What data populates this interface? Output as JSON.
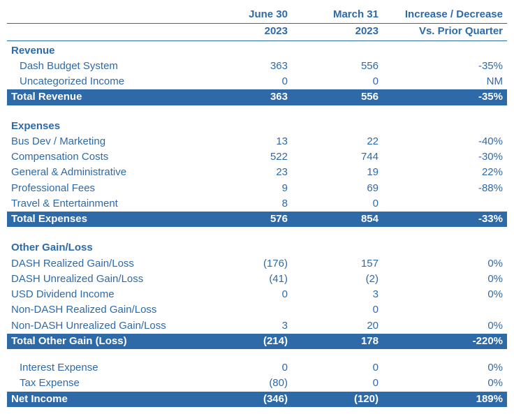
{
  "colors": {
    "brand": "#2f6aa8",
    "white": "#ffffff"
  },
  "header": {
    "col1_l1": "June 30",
    "col1_l2": "2023",
    "col2_l1": "March 31",
    "col2_l2": "2023",
    "col3_l1": "Increase / Decrease",
    "col3_l2": "Vs. Prior Quarter"
  },
  "revenue": {
    "title": "Revenue",
    "rows": [
      {
        "label": "Dash Budget System",
        "v1": "363",
        "v2": "556",
        "v3": "-35%"
      },
      {
        "label": "Uncategorized Income",
        "v1": "0",
        "v2": "0",
        "v3": "NM"
      }
    ],
    "total": {
      "label": "Total Revenue",
      "v1": "363",
      "v2": "556",
      "v3": "-35%"
    }
  },
  "expenses": {
    "title": "Expenses",
    "rows": [
      {
        "label": "Bus Dev / Marketing",
        "v1": "13",
        "v2": "22",
        "v3": "-40%"
      },
      {
        "label": "Compensation Costs",
        "v1": "522",
        "v2": "744",
        "v3": "-30%"
      },
      {
        "label": "General & Administrative",
        "v1": "23",
        "v2": "19",
        "v3": "22%"
      },
      {
        "label": "Professional Fees",
        "v1": "9",
        "v2": "69",
        "v3": "-88%"
      },
      {
        "label": "Travel & Entertainment",
        "v1": "8",
        "v2": "0",
        "v3": ""
      }
    ],
    "total": {
      "label": "Total Expenses",
      "v1": "576",
      "v2": "854",
      "v3": "-33%"
    }
  },
  "other": {
    "title": "Other Gain/Loss",
    "rows": [
      {
        "label": "DASH Realized Gain/Loss",
        "v1": "(176)",
        "v2": "157",
        "v3": "0%"
      },
      {
        "label": "DASH Unrealized Gain/Loss",
        "v1": "(41)",
        "v2": "(2)",
        "v3": "0%"
      },
      {
        "label": "USD Dividend Income",
        "v1": "0",
        "v2": "3",
        "v3": "0%"
      },
      {
        "label": "Non-DASH Realized Gain/Loss",
        "v1": "",
        "v2": "0",
        "v3": ""
      },
      {
        "label": "Non-DASH Unrealized Gain/Loss",
        "v1": "3",
        "v2": "20",
        "v3": "0%"
      }
    ],
    "total": {
      "label": "Total Other Gain (Loss)",
      "v1": "(214)",
      "v2": "178",
      "v3": "-220%"
    }
  },
  "footer": {
    "rows": [
      {
        "label": "Interest Expense",
        "v1": "0",
        "v2": "0",
        "v3": "0%"
      },
      {
        "label": "Tax Expense",
        "v1": "(80)",
        "v2": "0",
        "v3": "0%"
      }
    ],
    "net": {
      "label": "Net Income",
      "v1": "(346)",
      "v2": "(120)",
      "v3": "189%"
    }
  }
}
